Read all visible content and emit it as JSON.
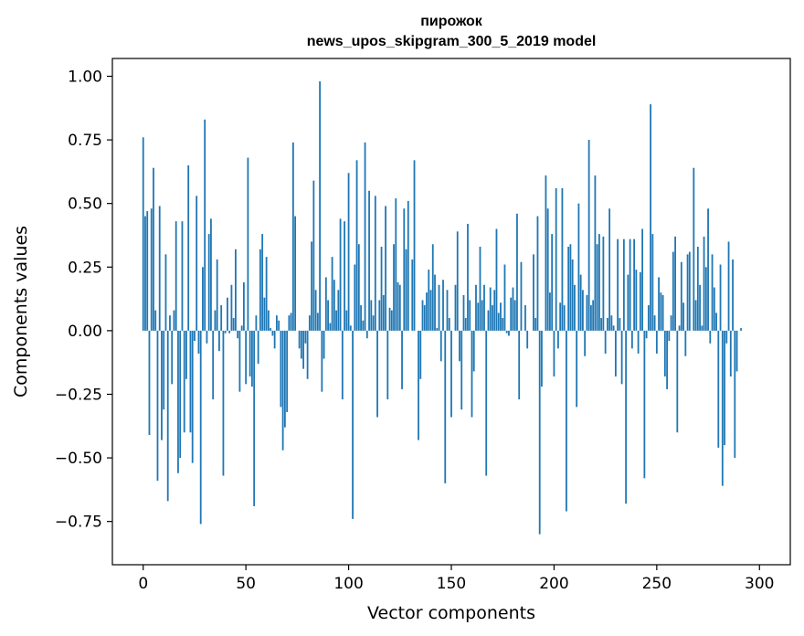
{
  "chart_data": {
    "type": "bar",
    "title": "пирожок",
    "subtitle": "news_upos_skipgram_300_5_2019 model",
    "xlabel": "Vector components",
    "ylabel": "Components values",
    "xlim": [
      -15,
      315
    ],
    "ylim": [
      -0.92,
      1.07
    ],
    "xticks": [
      0,
      50,
      100,
      150,
      200,
      250,
      300
    ],
    "yticks": [
      -0.75,
      -0.5,
      -0.25,
      0.0,
      0.25,
      0.5,
      0.75,
      1.0
    ],
    "xtick_labels": [
      "0",
      "50",
      "100",
      "150",
      "200",
      "250",
      "300"
    ],
    "ytick_labels": [
      "−0.75",
      "−0.50",
      "−0.25",
      "0.00",
      "0.25",
      "0.50",
      "0.75",
      "1.00"
    ],
    "grid": false,
    "bar_color": "#1f77b4",
    "x_start": 0,
    "values": [
      0.76,
      0.45,
      0.47,
      -0.41,
      0.48,
      0.64,
      0.08,
      -0.59,
      0.49,
      -0.43,
      -0.31,
      0.3,
      -0.67,
      0.06,
      -0.21,
      0.08,
      0.43,
      -0.56,
      -0.5,
      0.43,
      -0.4,
      -0.19,
      0.65,
      -0.4,
      -0.52,
      -0.04,
      0.53,
      -0.09,
      -0.76,
      0.25,
      0.83,
      -0.05,
      0.38,
      0.44,
      -0.27,
      0.08,
      0.28,
      -0.08,
      0.1,
      -0.57,
      -0.01,
      0.13,
      -0.01,
      0.18,
      0.05,
      0.32,
      -0.03,
      -0.24,
      0.02,
      0.19,
      -0.21,
      0.68,
      -0.18,
      -0.22,
      -0.69,
      0.06,
      -0.13,
      0.32,
      0.38,
      0.13,
      0.29,
      0.08,
      0.01,
      -0.02,
      -0.07,
      0.06,
      0.04,
      -0.3,
      -0.47,
      -0.38,
      -0.32,
      0.06,
      0.07,
      0.74,
      0.45,
      0.0,
      -0.07,
      -0.11,
      -0.15,
      -0.05,
      -0.19,
      0.06,
      0.35,
      0.59,
      0.16,
      0.07,
      0.98,
      -0.24,
      -0.11,
      0.21,
      0.12,
      0.03,
      0.29,
      0.2,
      0.08,
      0.16,
      0.44,
      -0.27,
      0.43,
      0.08,
      0.62,
      0.02,
      -0.74,
      0.26,
      0.67,
      0.34,
      0.1,
      0.04,
      0.74,
      -0.03,
      0.55,
      0.12,
      0.06,
      0.53,
      -0.34,
      0.12,
      0.33,
      0.14,
      0.49,
      -0.27,
      0.09,
      0.08,
      0.34,
      0.52,
      0.19,
      0.18,
      -0.23,
      0.48,
      0.32,
      0.51,
      0.0,
      0.28,
      0.67,
      0.0,
      -0.43,
      -0.19,
      0.12,
      0.1,
      0.15,
      0.24,
      0.16,
      0.34,
      0.22,
      0.01,
      0.18,
      -0.12,
      0.2,
      -0.6,
      0.16,
      0.05,
      -0.34,
      0.0,
      0.18,
      0.39,
      -0.12,
      -0.31,
      0.14,
      0.05,
      0.42,
      0.12,
      -0.34,
      -0.16,
      0.18,
      0.11,
      0.33,
      0.12,
      0.18,
      -0.57,
      0.08,
      0.17,
      0.1,
      0.16,
      0.4,
      0.07,
      0.11,
      0.05,
      0.26,
      -0.01,
      -0.02,
      0.13,
      0.17,
      0.12,
      0.46,
      -0.27,
      0.27,
      0.0,
      0.1,
      -0.07,
      0.0,
      0.0,
      0.3,
      0.05,
      0.45,
      -0.8,
      -0.22,
      0.0,
      0.61,
      0.48,
      0.15,
      0.38,
      -0.18,
      0.56,
      -0.07,
      0.11,
      0.56,
      0.1,
      -0.71,
      0.33,
      0.34,
      0.28,
      0.18,
      -0.3,
      0.5,
      0.22,
      0.16,
      -0.1,
      0.14,
      0.75,
      0.1,
      0.12,
      0.61,
      0.34,
      0.38,
      0.05,
      0.37,
      -0.09,
      0.05,
      0.48,
      0.06,
      0.02,
      -0.18,
      0.36,
      0.05,
      -0.21,
      0.36,
      -0.68,
      0.22,
      0.36,
      -0.07,
      0.36,
      0.24,
      -0.09,
      0.23,
      0.4,
      -0.58,
      -0.03,
      0.1,
      0.89,
      0.38,
      0.06,
      -0.09,
      0.21,
      0.15,
      0.14,
      -0.18,
      -0.23,
      -0.04,
      0.06,
      0.31,
      0.37,
      -0.4,
      0.02,
      0.27,
      0.11,
      -0.1,
      0.3,
      0.31,
      0.0,
      0.64,
      0.12,
      0.33,
      0.18,
      0.02,
      0.37,
      0.25,
      0.48,
      -0.05,
      0.3,
      0.17,
      0.07,
      -0.46,
      0.26,
      -0.61,
      -0.45,
      -0.05,
      0.35,
      -0.18,
      0.28,
      -0.5,
      -0.16,
      0.0,
      0.01
    ]
  }
}
